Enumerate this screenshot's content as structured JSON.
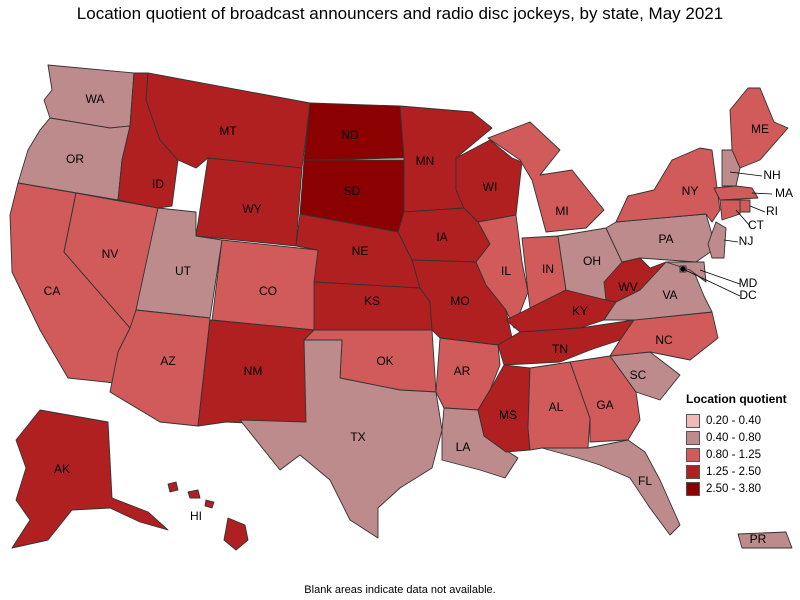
{
  "title": "Location quotient of broadcast announcers and radio disc jockeys, by state, May 2021",
  "footnote": "Blank areas indicate data not available.",
  "legend": {
    "title": "Location quotient",
    "items": [
      {
        "label": "0.20 - 0.40",
        "color": "#f2b9b9"
      },
      {
        "label": "0.40 - 0.80",
        "color": "#bd8b8b"
      },
      {
        "label": "0.80 - 1.25",
        "color": "#d15a5a"
      },
      {
        "label": "1.25 - 2.50",
        "color": "#b02020"
      },
      {
        "label": "2.50 - 3.80",
        "color": "#8b0000"
      }
    ]
  },
  "states": [
    {
      "abbr": "WA",
      "cls": 1
    },
    {
      "abbr": "OR",
      "cls": 1
    },
    {
      "abbr": "CA",
      "cls": 2
    },
    {
      "abbr": "NV",
      "cls": 2
    },
    {
      "abbr": "ID",
      "cls": 3
    },
    {
      "abbr": "MT",
      "cls": 3
    },
    {
      "abbr": "WY",
      "cls": 3
    },
    {
      "abbr": "UT",
      "cls": 1
    },
    {
      "abbr": "AZ",
      "cls": 2
    },
    {
      "abbr": "CO",
      "cls": 2
    },
    {
      "abbr": "NM",
      "cls": 3
    },
    {
      "abbr": "ND",
      "cls": 4
    },
    {
      "abbr": "SD",
      "cls": 4
    },
    {
      "abbr": "NE",
      "cls": 3
    },
    {
      "abbr": "KS",
      "cls": 3
    },
    {
      "abbr": "OK",
      "cls": 2
    },
    {
      "abbr": "TX",
      "cls": 1
    },
    {
      "abbr": "MN",
      "cls": 3
    },
    {
      "abbr": "IA",
      "cls": 3
    },
    {
      "abbr": "MO",
      "cls": 3
    },
    {
      "abbr": "AR",
      "cls": 2
    },
    {
      "abbr": "LA",
      "cls": 1
    },
    {
      "abbr": "WI",
      "cls": 3
    },
    {
      "abbr": "IL",
      "cls": 2
    },
    {
      "abbr": "MI",
      "cls": 2
    },
    {
      "abbr": "IN",
      "cls": 2
    },
    {
      "abbr": "OH",
      "cls": 1
    },
    {
      "abbr": "KY",
      "cls": 3
    },
    {
      "abbr": "TN",
      "cls": 3
    },
    {
      "abbr": "MS",
      "cls": 3
    },
    {
      "abbr": "AL",
      "cls": 2
    },
    {
      "abbr": "GA",
      "cls": 2
    },
    {
      "abbr": "FL",
      "cls": 1
    },
    {
      "abbr": "SC",
      "cls": 1
    },
    {
      "abbr": "NC",
      "cls": 2
    },
    {
      "abbr": "VA",
      "cls": 1
    },
    {
      "abbr": "WV",
      "cls": 3
    },
    {
      "abbr": "PA",
      "cls": 1
    },
    {
      "abbr": "NY",
      "cls": 2
    },
    {
      "abbr": "ME",
      "cls": 2
    },
    {
      "abbr": "NH",
      "cls": 1
    },
    {
      "abbr": "MA",
      "cls": 2
    },
    {
      "abbr": "RI",
      "cls": 2
    },
    {
      "abbr": "CT",
      "cls": 2
    },
    {
      "abbr": "NJ",
      "cls": 1
    },
    {
      "abbr": "MD",
      "cls": 1
    },
    {
      "abbr": "DC",
      "cls": 1
    },
    {
      "abbr": "AK",
      "cls": 3
    },
    {
      "abbr": "HI",
      "cls": 3
    },
    {
      "abbr": "PR",
      "cls": 1
    }
  ]
}
